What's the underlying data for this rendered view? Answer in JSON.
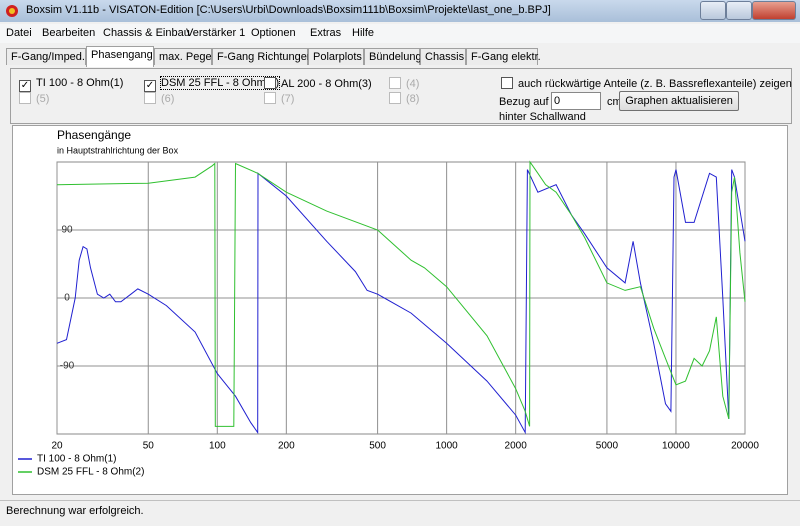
{
  "window": {
    "title": "Boxsim V1.11b - VISATON-Edition [C:\\Users\\Urbi\\Downloads\\Boxsim111b\\Boxsim\\Projekte\\last_one_b.BPJ]"
  },
  "menu": [
    "Datei",
    "Bearbeiten",
    "Chassis & Einbau",
    "Verstärker 1",
    "Optionen",
    "Extras",
    "Hilfe"
  ],
  "tabs": [
    "F-Gang/Imped.",
    "Phasengang",
    "max. Pegel",
    "F-Gang Richtungen",
    "Polarplots",
    "Bündelung",
    "Chassis",
    "F-Gang elektr."
  ],
  "active_tab": 1,
  "options": {
    "drivers": [
      {
        "label": "TI 100 - 8 Ohm(1)",
        "checked": true,
        "enabled": true
      },
      {
        "label": "DSM 25 FFL - 8 Ohm(2)",
        "checked": true,
        "enabled": true
      },
      {
        "label": "AL 200 - 8 Ohm(3)",
        "checked": false,
        "enabled": true
      },
      {
        "label": "(4)",
        "checked": false,
        "enabled": false
      },
      {
        "label": "(5)",
        "checked": false,
        "enabled": false
      },
      {
        "label": "(6)",
        "checked": false,
        "enabled": false
      },
      {
        "label": "(7)",
        "checked": false,
        "enabled": false
      },
      {
        "label": "(8)",
        "checked": false,
        "enabled": false
      }
    ],
    "rear_label": "auch rückwärtige Anteile (z. B. Bassreflexanteile) zeigen",
    "ref_label": "Bezug auf",
    "ref_value": "0",
    "ref_unit": "cm",
    "ref_suffix": "hinter Schallwand",
    "button": "Graphen aktualisieren"
  },
  "chart_data": {
    "type": "line",
    "title": "Phasengänge",
    "subtitle": "in Hauptstrahlrichtung der Box",
    "log_x": true,
    "grid": true,
    "xlim": [
      20,
      20000
    ],
    "xticks": [
      20,
      50,
      100,
      200,
      500,
      1000,
      2000,
      5000,
      10000,
      20000
    ],
    "ylim": [
      -180,
      180
    ],
    "yticks": [
      -90,
      0,
      90
    ],
    "series": [
      {
        "name": "TI 100 - 8 Ohm(1)",
        "color": "#2020d0",
        "x": [
          20,
          22,
          24,
          25,
          26,
          27,
          28,
          30,
          32,
          34,
          36,
          38,
          42,
          45,
          50,
          60,
          80,
          100,
          120,
          140,
          150,
          150.5,
          200,
          300,
          400,
          450,
          500,
          700,
          1000,
          1500,
          2000,
          2200,
          2250,
          2500,
          3000,
          3500,
          4000,
          5000,
          6000,
          6500,
          7000,
          8000,
          9000,
          9500,
          9800,
          10000,
          11000,
          12000,
          14000,
          15000,
          16000,
          17000,
          17500,
          18000,
          20000
        ],
        "values": [
          -60,
          -55,
          0,
          50,
          68,
          65,
          40,
          5,
          0,
          5,
          -5,
          -5,
          5,
          12,
          5,
          -10,
          -45,
          -100,
          -130,
          -165,
          -178,
          165,
          135,
          75,
          35,
          10,
          5,
          -20,
          -60,
          -110,
          -155,
          -178,
          170,
          140,
          150,
          110,
          85,
          40,
          20,
          75,
          20,
          -60,
          -140,
          -150,
          160,
          170,
          100,
          100,
          165,
          160,
          0,
          -160,
          170,
          160,
          75
        ]
      },
      {
        "name": "DSM 25 FFL - 8 Ohm(2)",
        "color": "#30c030",
        "x": [
          20,
          50,
          80,
          95,
          97.5,
          98,
          115,
          118,
          120,
          150,
          200,
          300,
          500,
          700,
          800,
          1000,
          1500,
          2000,
          2200,
          2300,
          2310,
          2500,
          2700,
          3000,
          3500,
          4000,
          5000,
          6000,
          7000,
          8000,
          9000,
          10000,
          11000,
          12000,
          13000,
          14000,
          15000,
          16000,
          17000,
          17500,
          18000,
          19000,
          20000
        ],
        "values": [
          150,
          152,
          160,
          175,
          178,
          -170,
          -170,
          -170,
          178,
          165,
          140,
          115,
          90,
          50,
          40,
          15,
          -50,
          -120,
          -150,
          -170,
          180,
          165,
          150,
          140,
          110,
          80,
          20,
          10,
          15,
          -40,
          -80,
          -115,
          -110,
          -80,
          -90,
          -70,
          -25,
          -130,
          -160,
          140,
          160,
          60,
          -5
        ]
      }
    ]
  },
  "status": "Berechnung war erfolgreich."
}
